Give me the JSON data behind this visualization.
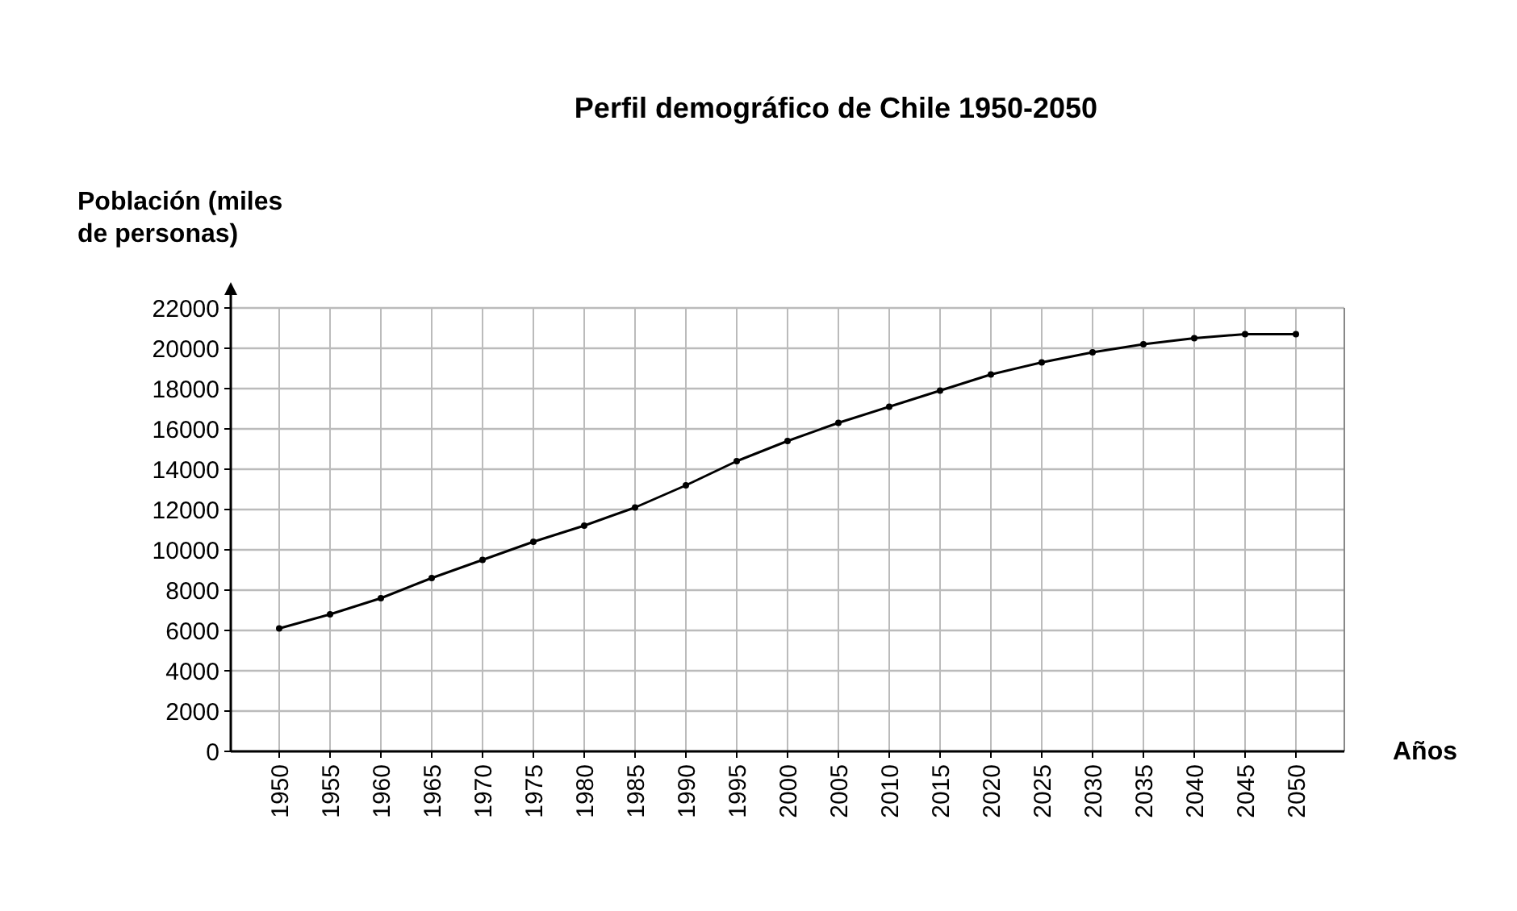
{
  "chart_data": {
    "type": "line",
    "title": "Perfil demográfico de Chile 1950-2050",
    "ylabel": "Población (miles de personas)",
    "xlabel": "Años",
    "categories": [
      "1950",
      "1955",
      "1960",
      "1965",
      "1970",
      "1975",
      "1980",
      "1985",
      "1990",
      "1995",
      "2000",
      "2005",
      "2010",
      "2015",
      "2020",
      "2025",
      "2030",
      "2035",
      "2040",
      "2045",
      "2050"
    ],
    "series": [
      {
        "color": "#000000",
        "values": [
          6100,
          6800,
          7600,
          8600,
          9500,
          10400,
          11200,
          12100,
          13200,
          14400,
          15400,
          16300,
          17100,
          17900,
          18700,
          19300,
          19800,
          20200,
          20500,
          20700,
          20700
        ]
      }
    ],
    "ylim": [
      0,
      22000
    ],
    "yticks": [
      0,
      2000,
      4000,
      6000,
      8000,
      10000,
      12000,
      14000,
      16000,
      18000,
      20000,
      22000
    ],
    "grid": true,
    "marker": "circle",
    "line_style": "solid"
  }
}
